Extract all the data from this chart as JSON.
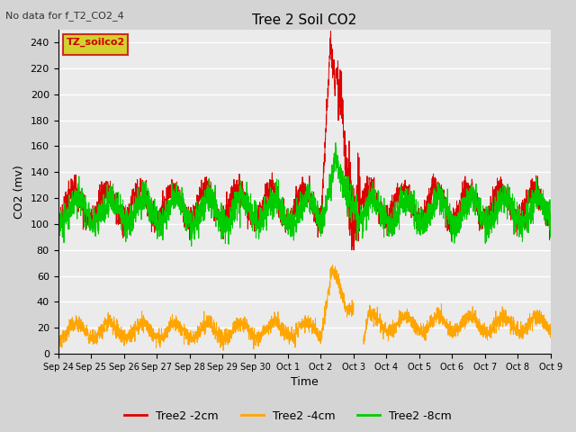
{
  "title": "Tree 2 Soil CO2",
  "subtitle": "No data for f_T2_CO2_4",
  "ylabel": "CO2 (mv)",
  "xlabel": "Time",
  "legend_box_label": "TZ_soilco2",
  "ylim": [
    0,
    250
  ],
  "plot_bg_color": "#ebebeb",
  "fig_bg_color": "#d4d4d4",
  "series_colors": {
    "2cm": "#dd0000",
    "4cm": "#ffa500",
    "8cm": "#00cc00"
  },
  "tick_labels": [
    "Sep 24",
    "Sep 25",
    "Sep 26",
    "Sep 27",
    "Sep 28",
    "Sep 29",
    "Sep 30",
    "Oct 1",
    "Oct 2",
    "Oct 3",
    "Oct 4",
    "Oct 5",
    "Oct 6",
    "Oct 7",
    "Oct 8",
    "Oct 9"
  ],
  "yticks": [
    0,
    20,
    40,
    60,
    80,
    100,
    120,
    140,
    160,
    180,
    200,
    220,
    240
  ],
  "legend_box_bg": "#cccc00",
  "legend_box_edge": "#cc0000",
  "legend_box_text_color": "#cc0000"
}
